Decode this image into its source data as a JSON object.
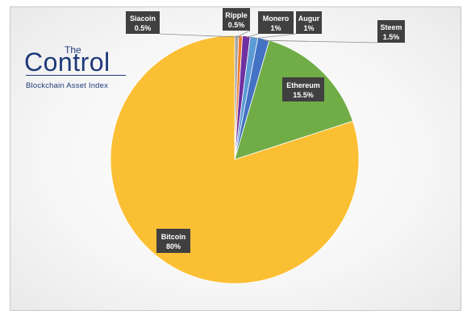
{
  "logo": {
    "word": "Control",
    "the": "The",
    "subtitle": "Blockchain Asset Index"
  },
  "chart_data": {
    "type": "pie",
    "title": "",
    "slices": [
      {
        "label": "Ripple",
        "value": 0.5,
        "display": "0.5%",
        "color": "#a5a5a5"
      },
      {
        "label": "Siacoin",
        "value": 0.5,
        "display": "0.5%",
        "color": "#ed7d31"
      },
      {
        "label": "Monero",
        "value": 1,
        "display": "1%",
        "color": "#7030a0"
      },
      {
        "label": "Augur",
        "value": 1,
        "display": "1%",
        "color": "#5b9bd5"
      },
      {
        "label": "Steem",
        "value": 1.5,
        "display": "1.5%",
        "color": "#4472c4"
      },
      {
        "label": "Ethereum",
        "value": 15.5,
        "display": "15.5%",
        "color": "#70ad47"
      },
      {
        "label": "Bitcoin",
        "value": 80,
        "display": "80%",
        "color": "#fbbf34"
      }
    ]
  }
}
